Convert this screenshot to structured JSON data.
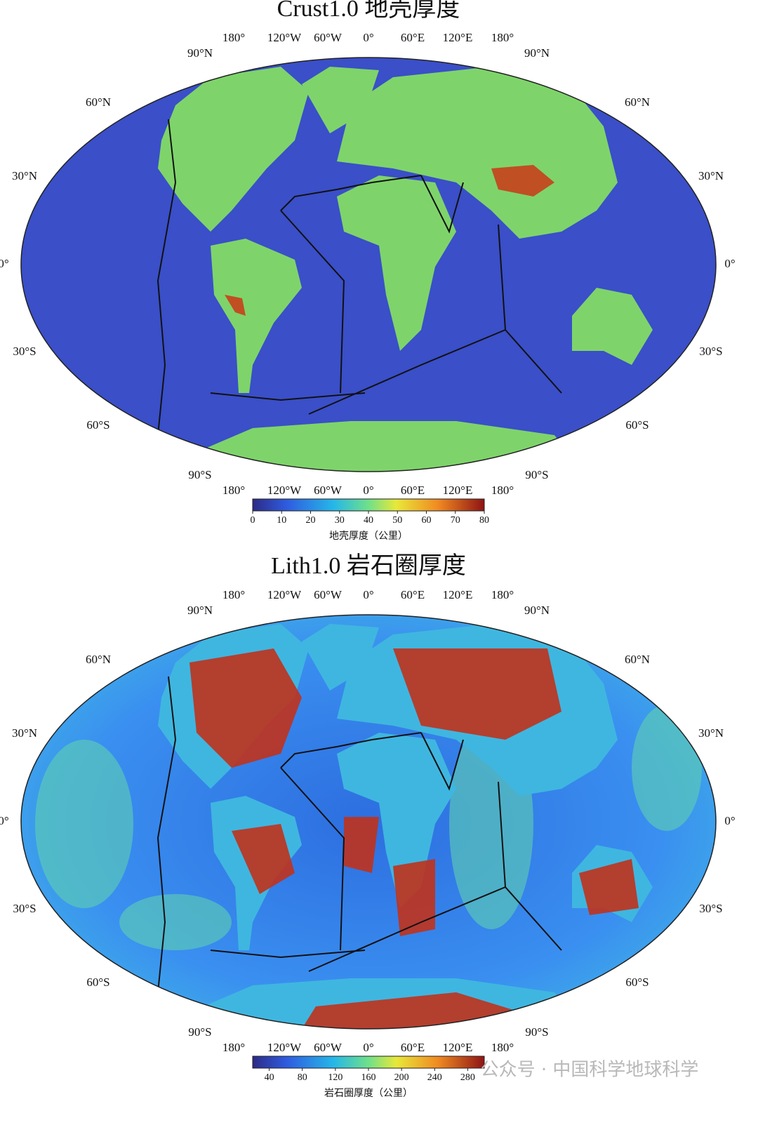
{
  "maps": [
    {
      "title": "Crust1.0 地壳厚度",
      "lon_labels": [
        "180°",
        "120°W",
        "60°W",
        "0°",
        "60°E",
        "120°E",
        "180°"
      ],
      "lat_labels": [
        "90°N",
        "60°N",
        "30°N",
        "0°",
        "30°S",
        "60°S",
        "90°S"
      ],
      "colorbar": {
        "range": [
          0,
          80
        ],
        "ticks": [
          0,
          10,
          20,
          30,
          40,
          50,
          60,
          70,
          80
        ],
        "label": "地壳厚度（公里）"
      }
    },
    {
      "title": "Lith1.0 岩石圈厚度",
      "lon_labels": [
        "180°",
        "120°W",
        "60°W",
        "0°",
        "60°E",
        "120°E",
        "180°"
      ],
      "lat_labels": [
        "90°N",
        "60°N",
        "30°N",
        "0°",
        "30°S",
        "60°S",
        "90°S"
      ],
      "colorbar": {
        "range": [
          20,
          300
        ],
        "ticks": [
          40,
          80,
          120,
          160,
          200,
          240,
          280
        ],
        "label": "岩石圈厚度（公里）"
      }
    }
  ],
  "watermark": "公众号 · 中国科学地球科学"
}
